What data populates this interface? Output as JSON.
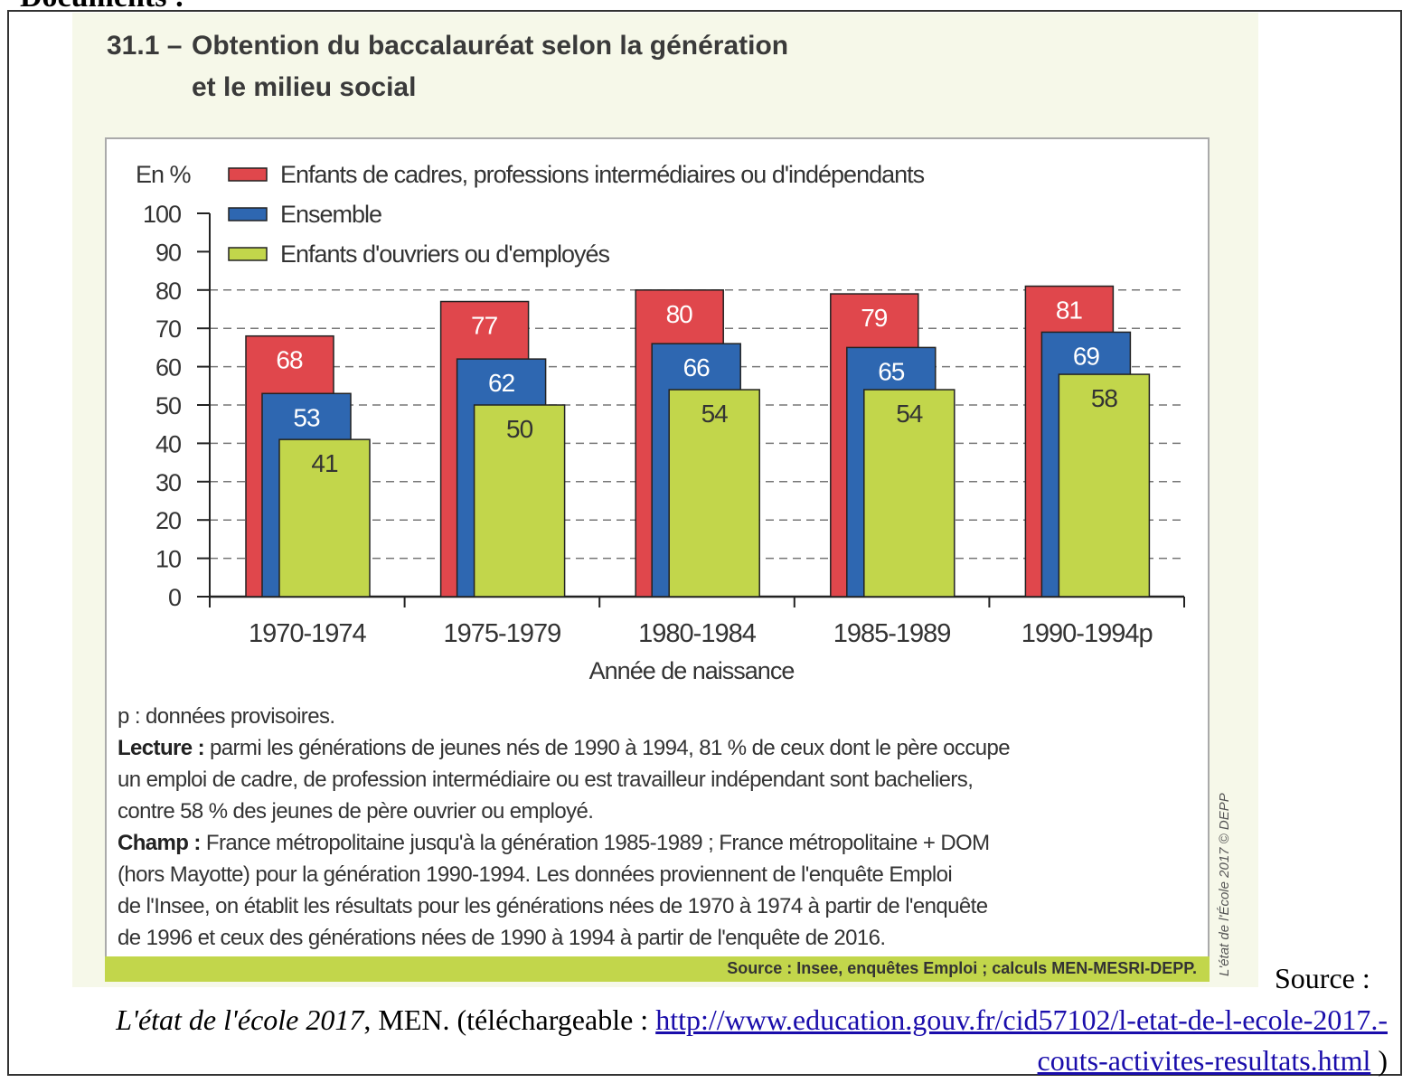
{
  "page_heading": "Documents :",
  "figure": {
    "number": "31.1 –",
    "title_line1": "Obtention du baccalauréat selon la génération",
    "title_line2": "et le milieu social"
  },
  "chart_data": {
    "type": "bar",
    "title": "Obtention du baccalauréat selon la génération et le milieu social",
    "ylabel": "En %",
    "xlabel": "Année de naissance",
    "ylim": [
      0,
      100
    ],
    "yticks": [
      0,
      10,
      20,
      30,
      40,
      50,
      60,
      70,
      80,
      90,
      100
    ],
    "grid": true,
    "legend_position": "top-left",
    "categories": [
      "1970-1974",
      "1975-1979",
      "1980-1984",
      "1985-1989",
      "1990-1994p"
    ],
    "series": [
      {
        "name": "Enfants de cadres, professions intermédiaires ou d'indépendants",
        "color": "#e0474c",
        "values": [
          68,
          77,
          80,
          79,
          81
        ]
      },
      {
        "name": "Ensemble",
        "color": "#2e67b1",
        "values": [
          53,
          62,
          66,
          65,
          69
        ]
      },
      {
        "name": "Enfants d'ouvriers ou d'employés",
        "color": "#c2d64b",
        "values": [
          41,
          50,
          54,
          54,
          58
        ]
      }
    ]
  },
  "notes": {
    "provisional": "p : données provisoires.",
    "lecture_label": "Lecture :",
    "lecture_lines": [
      " parmi les générations de jeunes nés de 1990 à 1994, 81 % de ceux dont le père occupe",
      "un emploi de cadre, de profession intermédiaire ou est travailleur indépendant sont bacheliers,",
      "contre 58 % des jeunes de père ouvrier ou employé."
    ],
    "champ_label": "Champ :",
    "champ_lines": [
      " France métropolitaine jusqu'à la génération 1985-1989 ; France métropolitaine + DOM",
      "(hors Mayotte) pour la génération 1990-1994. Les données proviennent de l'enquête Emploi",
      "de l'Insee, on établit les résultats pour les générations nées de 1970 à 1974 à partir de l'enquête",
      "de 1996 et ceux des générations nées de 1990 à 1994 à partir de l'enquête de 2016."
    ]
  },
  "source_bar": "Source : Insee, enquêtes Emploi ; calculs MEN-MESRI-DEPP.",
  "copyright": "L'état de l'École 2017 © DEPP",
  "citation": {
    "label": "Source :",
    "work": "L'état de l'école 2017",
    "publisher": ", MEN. (téléchargeable : ",
    "link": "http://www.education.gouv.fr/cid57102/l-etat-de-l-ecole-2017.-couts-activites-resultats.html",
    "close": " )"
  }
}
